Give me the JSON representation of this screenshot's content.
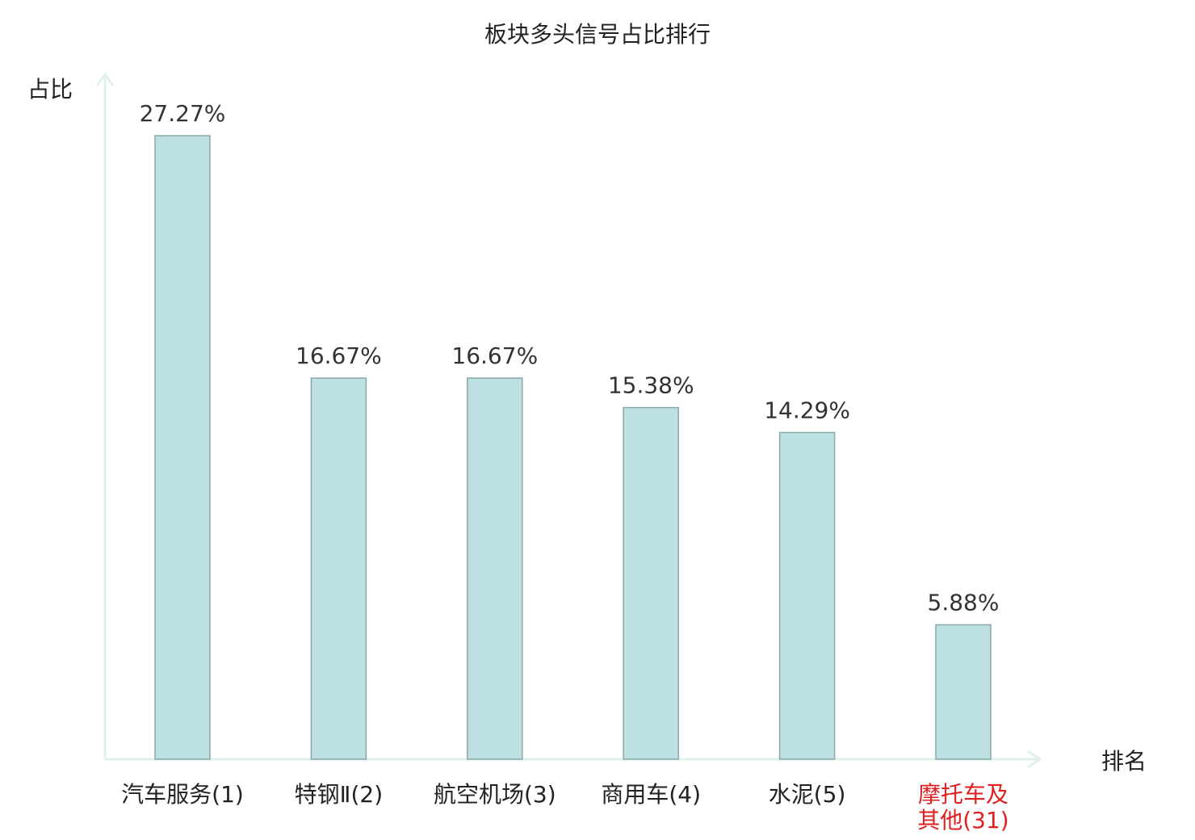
{
  "chart_data": {
    "type": "bar",
    "title": "板块多头信号占比排行",
    "xlabel": "排名",
    "ylabel": "占比",
    "categories": [
      {
        "lines": [
          "汽车服务(1)"
        ],
        "highlight": false
      },
      {
        "lines": [
          "特钢Ⅱ(2)"
        ],
        "highlight": false
      },
      {
        "lines": [
          "航空机场(3)"
        ],
        "highlight": false
      },
      {
        "lines": [
          "商用车(4)"
        ],
        "highlight": false
      },
      {
        "lines": [
          "水泥(5)"
        ],
        "highlight": false
      },
      {
        "lines": [
          "摩托车及",
          "其他(31)"
        ],
        "highlight": true
      }
    ],
    "values": [
      27.27,
      16.67,
      16.67,
      15.38,
      14.29,
      5.88
    ],
    "value_labels": [
      "27.27%",
      "16.67%",
      "16.67%",
      "15.38%",
      "14.29%",
      "5.88%"
    ],
    "ylim": [
      0,
      27.27
    ],
    "grid": false,
    "legend": "none",
    "colors": {
      "bar_fill": "#bde0e2",
      "bar_stroke": "#8aa8aa",
      "axis": "#e0f0ee",
      "text": "#222222",
      "highlight_text": "#e02020"
    }
  }
}
